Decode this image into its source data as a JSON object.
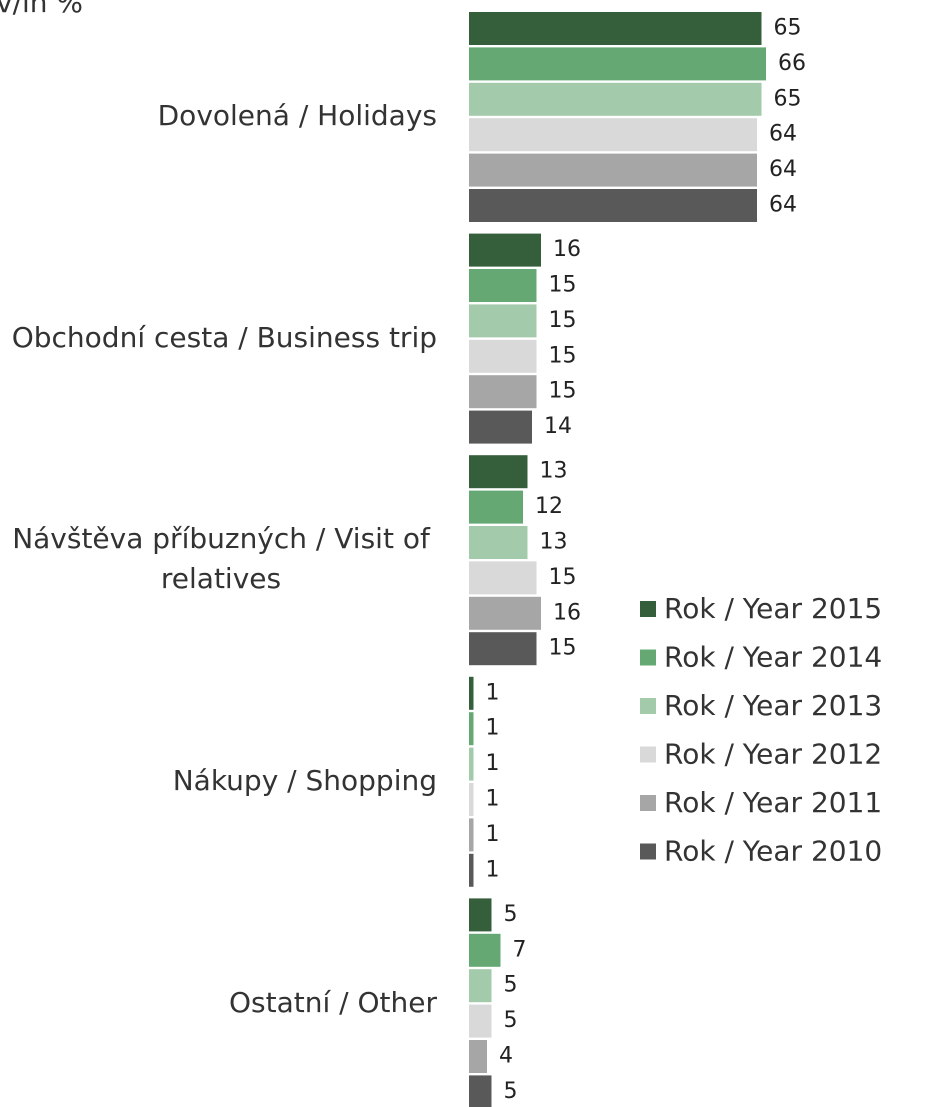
{
  "chart_data": {
    "type": "barh",
    "title": "v/in %",
    "categories": [
      "Dovolená / Holidays",
      "Obchodní cesta / Business trip",
      "Návštěva příbuzných / Visit of relatives",
      "Nákupy / Shopping",
      "Ostatní / Other"
    ],
    "series": [
      {
        "name": "Rok / Year 2015",
        "color": "#355e3b",
        "values": [
          65,
          16,
          13,
          1,
          5
        ]
      },
      {
        "name": "Rok / Year 2014",
        "color": "#65a873",
        "values": [
          66,
          15,
          12,
          1,
          7
        ]
      },
      {
        "name": "Rok / Year 2013",
        "color": "#a3cbab",
        "values": [
          65,
          15,
          13,
          1,
          5
        ]
      },
      {
        "name": "Rok / Year 2012",
        "color": "#d9d9d9",
        "values": [
          64,
          15,
          15,
          1,
          5
        ]
      },
      {
        "name": "Rok / Year 2011",
        "color": "#a6a6a6",
        "values": [
          64,
          15,
          16,
          1,
          4
        ]
      },
      {
        "name": "Rok / Year 2010",
        "color": "#595959",
        "values": [
          64,
          14,
          15,
          1,
          5
        ]
      }
    ],
    "legend": "right"
  }
}
